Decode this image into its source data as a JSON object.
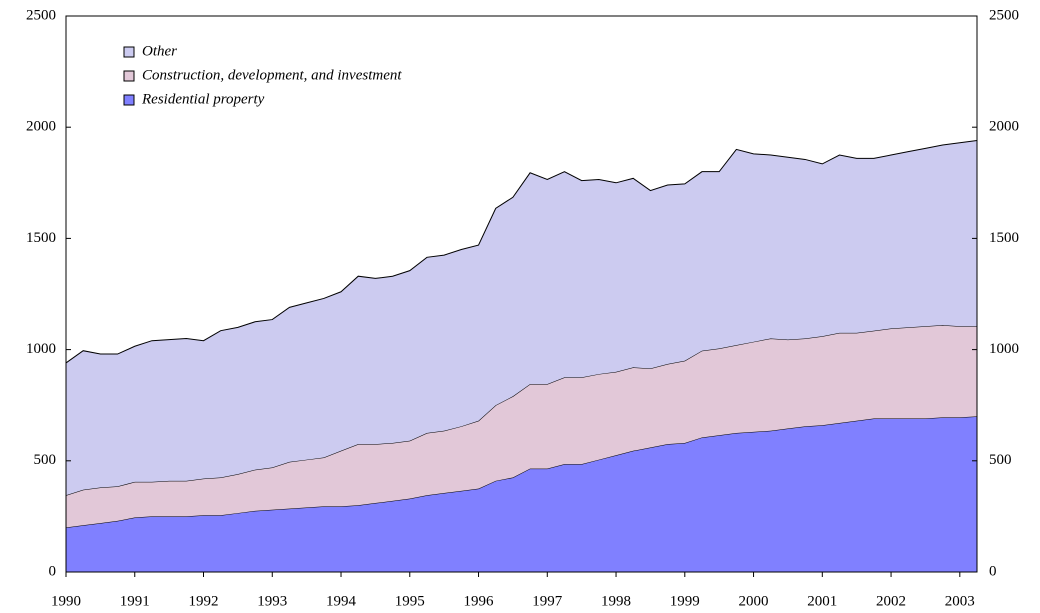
{
  "chart_data": {
    "type": "stacked_area",
    "x": [
      1990,
      1990.25,
      1990.5,
      1990.75,
      1991,
      1991.25,
      1991.5,
      1991.75,
      1992,
      1992.25,
      1992.5,
      1992.75,
      1993,
      1993.25,
      1993.5,
      1993.75,
      1994,
      1994.25,
      1994.5,
      1994.75,
      1995,
      1995.25,
      1995.5,
      1995.75,
      1996,
      1996.25,
      1996.5,
      1996.75,
      1997,
      1997.25,
      1997.5,
      1997.75,
      1998,
      1998.25,
      1998.5,
      1998.75,
      1999,
      1999.25,
      1999.5,
      1999.75,
      2000,
      2000.25,
      2000.5,
      2000.75,
      2001,
      2001.25,
      2001.5,
      2001.75,
      2002,
      2002.25,
      2002.5,
      2002.75,
      2003,
      2003.25
    ],
    "series": [
      {
        "name": "Residential property",
        "color": "#8080ff",
        "values": [
          200,
          210,
          220,
          230,
          245,
          250,
          250,
          250,
          255,
          255,
          265,
          275,
          280,
          285,
          290,
          295,
          295,
          300,
          310,
          320,
          330,
          345,
          355,
          365,
          375,
          410,
          425,
          465,
          465,
          485,
          485,
          505,
          525,
          545,
          560,
          575,
          580,
          605,
          615,
          625,
          630,
          635,
          645,
          655,
          660,
          670,
          680,
          690,
          690,
          690,
          690,
          695,
          695,
          700
        ]
      },
      {
        "name": "Construction, development, and investment",
        "color": "#e2c8d8",
        "values": [
          145,
          160,
          160,
          155,
          160,
          155,
          160,
          160,
          165,
          170,
          175,
          185,
          190,
          210,
          215,
          220,
          250,
          275,
          265,
          260,
          260,
          280,
          280,
          290,
          305,
          340,
          365,
          380,
          380,
          390,
          390,
          385,
          375,
          375,
          355,
          360,
          370,
          390,
          390,
          395,
          405,
          415,
          400,
          395,
          400,
          405,
          395,
          395,
          405,
          410,
          415,
          415,
          410,
          405
        ]
      },
      {
        "name": "Other",
        "color": "#cccbf0",
        "values": [
          595,
          625,
          600,
          595,
          610,
          635,
          635,
          640,
          620,
          660,
          660,
          665,
          665,
          695,
          705,
          715,
          715,
          755,
          745,
          750,
          765,
          790,
          790,
          795,
          790,
          885,
          895,
          950,
          920,
          925,
          885,
          875,
          850,
          850,
          800,
          805,
          795,
          805,
          795,
          880,
          845,
          825,
          820,
          805,
          775,
          800,
          785,
          775,
          780,
          790,
          800,
          810,
          825,
          835
        ]
      }
    ],
    "xlim": [
      1990,
      2003.25
    ],
    "xticks": [
      1990,
      1991,
      1992,
      1993,
      1994,
      1995,
      1996,
      1997,
      1998,
      1999,
      2000,
      2001,
      2002,
      2003
    ],
    "ylim": [
      0,
      2500
    ],
    "yticks": [
      0,
      500,
      1000,
      1500,
      2000,
      2500
    ],
    "y2lim": [
      0,
      2500
    ],
    "y2ticks": [
      0,
      500,
      1000,
      1500,
      2000,
      2500
    ],
    "legend": "upper left"
  }
}
